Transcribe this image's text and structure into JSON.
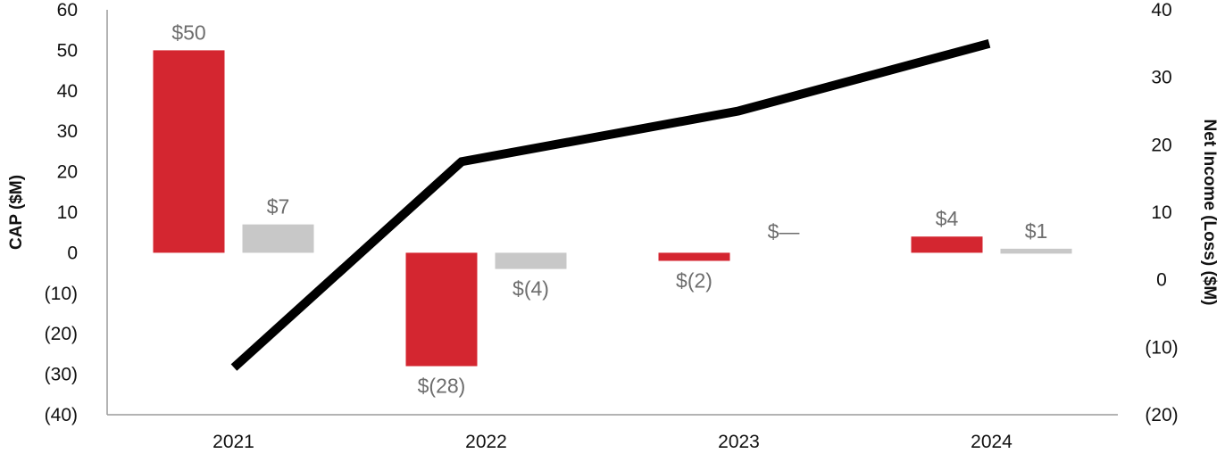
{
  "chart_data": {
    "type": "bar",
    "categories": [
      "2021",
      "2022",
      "2023",
      "2024"
    ],
    "series": [
      {
        "kind": "bar",
        "axis": "left",
        "values": [
          50,
          -28,
          -2,
          4
        ],
        "labels": [
          "$50",
          "$(28)",
          "$(2)",
          "$4"
        ],
        "color": "#d42630"
      },
      {
        "kind": "bar",
        "axis": "left",
        "values": [
          7,
          -4,
          0,
          1
        ],
        "labels": [
          "$7",
          "$(4)",
          "$—",
          "$1"
        ],
        "color": "#c8c8c8"
      },
      {
        "kind": "line",
        "axis": "right",
        "values": [
          -13,
          17.5,
          25,
          35
        ],
        "color": "#000000"
      }
    ],
    "ylabel": "CAP ($M)",
    "y2label": "Net Income (Loss) ($M)",
    "ylim": [
      -40,
      60
    ],
    "y2lim": [
      -20,
      40
    ],
    "yticks": [
      "(40)",
      "(30)",
      "(20)",
      "(10)",
      "0",
      "10",
      "20",
      "30",
      "40",
      "50",
      "60"
    ],
    "y2ticks": [
      "(20)",
      "(10)",
      "0",
      "10",
      "20",
      "30",
      "40"
    ],
    "grid": false,
    "legend": "none"
  }
}
